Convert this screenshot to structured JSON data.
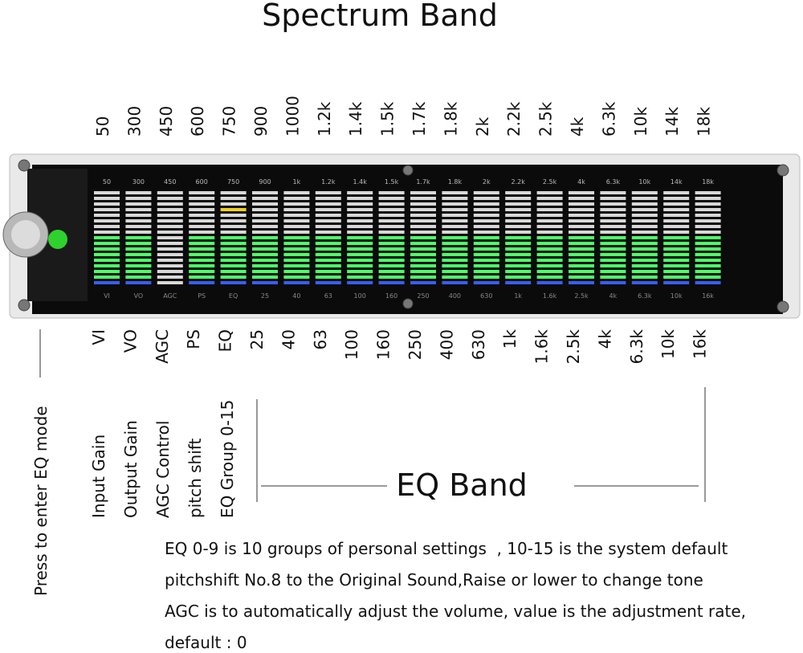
{
  "title": "Spectrum Band",
  "top_labels": [
    "50",
    "300",
    "450",
    "600",
    "750",
    "900",
    "1000",
    "1.2k",
    "1.4k",
    "1.5k",
    "1.7k",
    "1.8k",
    "2k",
    "2.2k",
    "2.5k",
    "4k",
    "6.3k",
    "10k",
    "14k",
    "18k"
  ],
  "panel": {
    "top_labels": [
      "50",
      "300",
      "450",
      "600",
      "750",
      "900",
      "1k",
      "1.2k",
      "1.4k",
      "1.5k",
      "1.7k",
      "1.8k",
      "2k",
      "2.2k",
      "2.5k",
      "4k",
      "6.3k",
      "10k",
      "14k",
      "18k"
    ],
    "bottom_labels": [
      "VI",
      "VO",
      "AGC",
      "PS",
      "EQ",
      "25",
      "40",
      "63",
      "100",
      "160",
      "250",
      "400",
      "630",
      "1k",
      "1.6k",
      "2.5k",
      "4k",
      "6.3k",
      "10k",
      "16k"
    ]
  },
  "bottom_labels": [
    "VI",
    "VO",
    "AGC",
    "PS",
    "EQ",
    "25",
    "40",
    "63",
    "100",
    "160",
    "250",
    "400",
    "630",
    "1k",
    "1.6k",
    "2.5k",
    "4k",
    "6.3k",
    "10k",
    "16k"
  ],
  "descriptions": [
    "Input Gain",
    "Output Gain",
    "AGC Control",
    "pitch shift",
    "EQ Group 0-15"
  ],
  "side_note": "Press to enter EQ mode",
  "eq_band_label": "EQ Band",
  "notes": [
    "EQ 0-9 is 10 groups of personal settings  , 10-15 is the system default",
    "pitchshift No.8 to the Original Sound,Raise or lower to change tone",
    "AGC is to automatically adjust the volume, value is the adjustment rate,",
    "default : 0"
  ]
}
